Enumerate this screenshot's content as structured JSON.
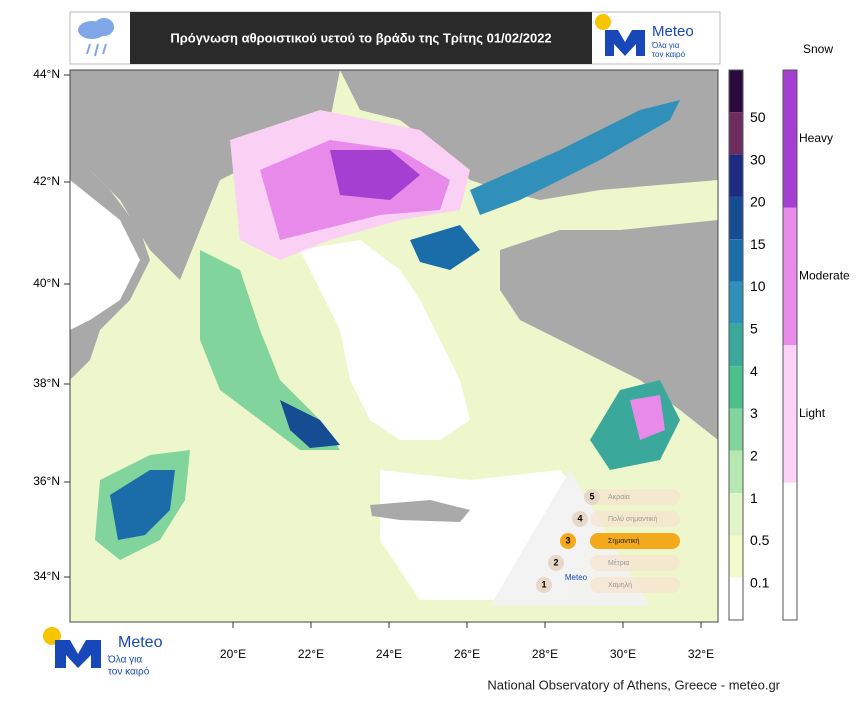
{
  "header": {
    "title": "Πρόγνωση αθροιστικού υετού το βράδυ της Τρίτης 01/02/2022",
    "logo": {
      "name": "Meteo",
      "tagline_1": "Όλα για",
      "tagline_2": "τον καιρό"
    }
  },
  "map": {
    "lat_labels": [
      "44°N",
      "42°N",
      "40°N",
      "38°N",
      "36°N",
      "34°N"
    ],
    "lon_labels": [
      "20°E",
      "22°E",
      "24°E",
      "26°E",
      "28°E",
      "30°E",
      "32°E"
    ]
  },
  "rain_scale": {
    "labels": [
      "50",
      "30",
      "20",
      "15",
      "10",
      "5",
      "4",
      "3",
      "2",
      "1",
      "0.5",
      "0.1"
    ],
    "colors": [
      "#2b0a3d",
      "#6e2c5e",
      "#1b2c82",
      "#164c92",
      "#1b6daa",
      "#3090b9",
      "#3aa99b",
      "#4dbf8b",
      "#80d49c",
      "#b6e9b2",
      "#e2f5c9",
      "#f2f9cb",
      "#ffffff"
    ]
  },
  "snow_scale": {
    "title": "Snow",
    "labels": [
      "Heavy",
      "Moderate",
      "Light"
    ],
    "colors": [
      "#a43fd2",
      "#e78ae9",
      "#fcd2f6",
      "#ffffff"
    ]
  },
  "inset": {
    "levels": [
      {
        "number": "5",
        "label": "Ακραία"
      },
      {
        "number": "4",
        "label": "Πολύ σημαντική"
      },
      {
        "number": "3",
        "label": "Σημαντική"
      },
      {
        "number": "2",
        "label": "Μέτρια"
      },
      {
        "number": "1",
        "label": "Χαμηλή"
      }
    ],
    "logo": "Meteo"
  },
  "footer": {
    "logo": {
      "name": "Meteo",
      "tagline_1": "Όλα για",
      "tagline_2": "τον καιρό"
    },
    "credit": "National Observatory of Athens, Greece - meteo.gr"
  }
}
